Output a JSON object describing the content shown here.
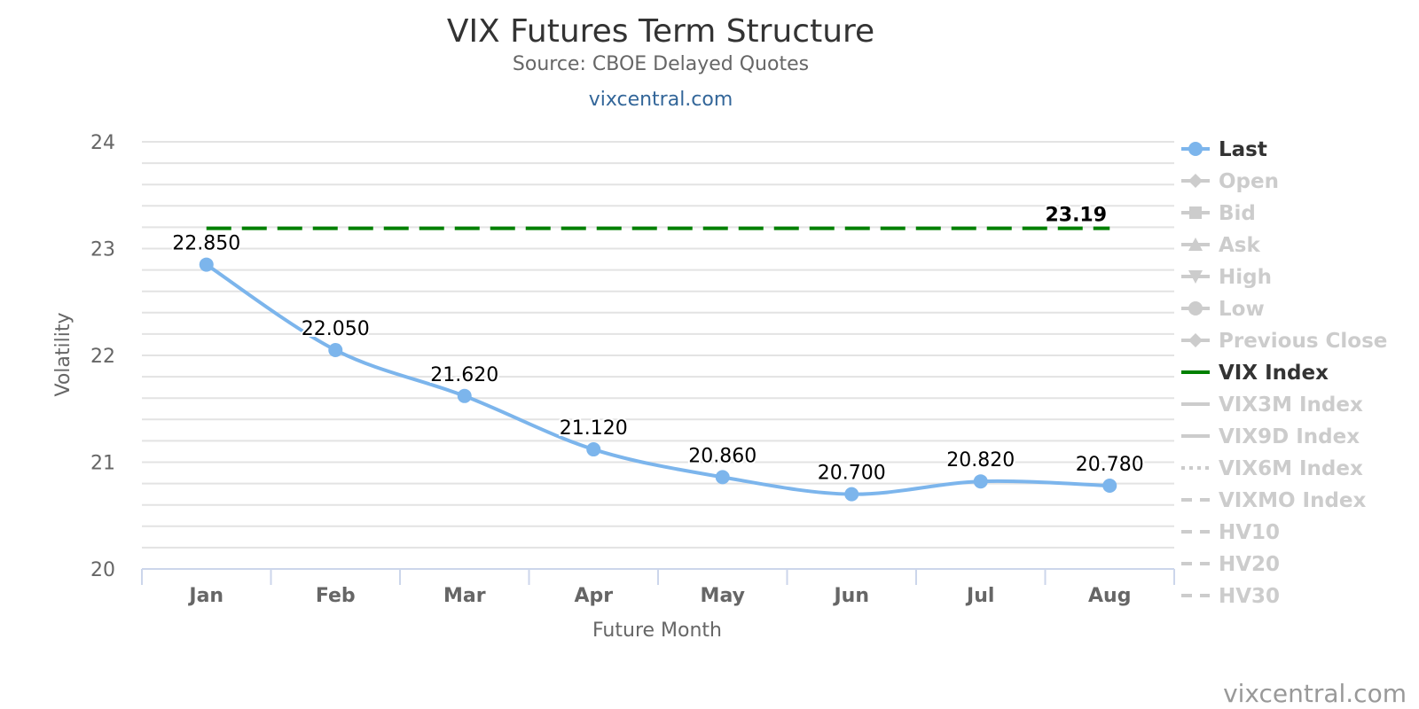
{
  "chart_data": {
    "type": "line",
    "title": "VIX Futures Term Structure",
    "subtitle": "Source: CBOE Delayed Quotes",
    "link_text": "vixcentral.com",
    "credits": "vixcentral.com",
    "xlabel": "Future Month",
    "ylabel": "Volatility",
    "categories": [
      "Jan",
      "Feb",
      "Mar",
      "Apr",
      "May",
      "Jun",
      "Jul",
      "Aug"
    ],
    "ylim": [
      20,
      24
    ],
    "yticks": [
      20,
      21,
      22,
      23,
      24
    ],
    "grid": true,
    "legend_position": "right",
    "series": [
      {
        "name": "Last",
        "type": "spline",
        "color": "#7cb5ec",
        "values": [
          22.85,
          22.05,
          21.62,
          21.12,
          20.86,
          20.7,
          20.82,
          20.78
        ],
        "data_labels": [
          "22.850",
          "22.050",
          "21.620",
          "21.120",
          "20.860",
          "20.700",
          "20.820",
          "20.780"
        ]
      },
      {
        "name": "VIX Index",
        "type": "dashed-line",
        "color": "#008000",
        "values": [
          23.19,
          23.19,
          23.19,
          23.19,
          23.19,
          23.19,
          23.19,
          23.19
        ],
        "end_label": "23.19"
      }
    ],
    "legend": [
      {
        "name": "Last",
        "symbol": "circle",
        "line": "solid",
        "active": true,
        "color": "#7cb5ec"
      },
      {
        "name": "Open",
        "symbol": "diamond",
        "line": "solid",
        "active": false,
        "color": "#cccccc"
      },
      {
        "name": "Bid",
        "symbol": "square",
        "line": "solid",
        "active": false,
        "color": "#cccccc"
      },
      {
        "name": "Ask",
        "symbol": "triangle",
        "line": "solid",
        "active": false,
        "color": "#cccccc"
      },
      {
        "name": "High",
        "symbol": "triangle-down",
        "line": "solid",
        "active": false,
        "color": "#cccccc"
      },
      {
        "name": "Low",
        "symbol": "circle",
        "line": "solid",
        "active": false,
        "color": "#cccccc"
      },
      {
        "name": "Previous Close",
        "symbol": "diamond",
        "line": "solid",
        "active": false,
        "color": "#cccccc"
      },
      {
        "name": "VIX Index",
        "symbol": "none",
        "line": "solid",
        "active": true,
        "color": "#008000"
      },
      {
        "name": "VIX3M Index",
        "symbol": "none",
        "line": "solid",
        "active": false,
        "color": "#cccccc"
      },
      {
        "name": "VIX9D Index",
        "symbol": "none",
        "line": "solid",
        "active": false,
        "color": "#cccccc"
      },
      {
        "name": "VIX6M Index",
        "symbol": "none",
        "line": "dot",
        "active": false,
        "color": "#cccccc"
      },
      {
        "name": "VIXMO Index",
        "symbol": "none",
        "line": "dash",
        "active": false,
        "color": "#cccccc"
      },
      {
        "name": "HV10",
        "symbol": "none",
        "line": "dash",
        "active": false,
        "color": "#cccccc"
      },
      {
        "name": "HV20",
        "symbol": "none",
        "line": "dash",
        "active": false,
        "color": "#cccccc"
      },
      {
        "name": "HV30",
        "symbol": "none",
        "line": "dash",
        "active": false,
        "color": "#cccccc"
      }
    ]
  }
}
